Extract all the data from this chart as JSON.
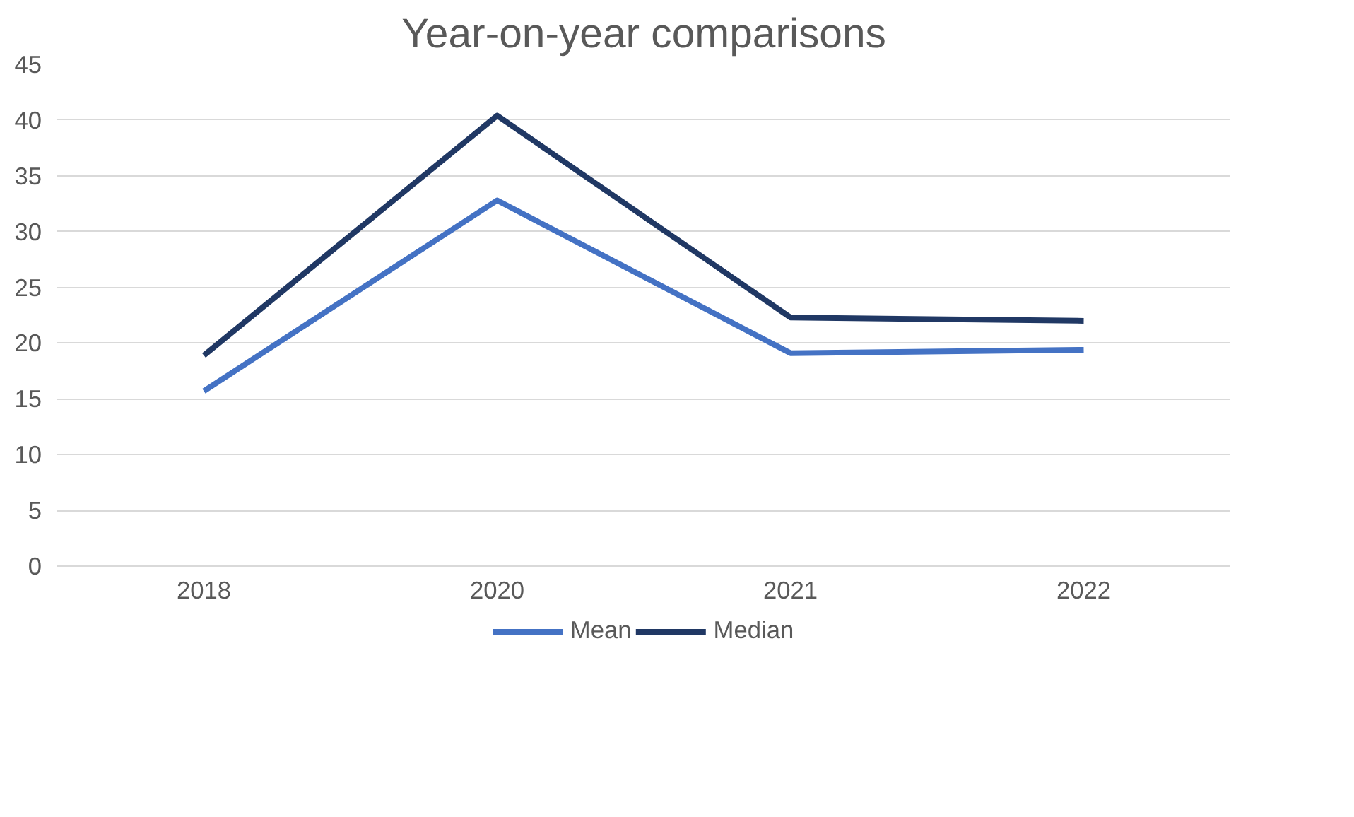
{
  "chart_data": {
    "type": "line",
    "title": "Year-on-year comparisons",
    "categories": [
      "2018",
      "2020",
      "2021",
      "2022"
    ],
    "series": [
      {
        "name": "Mean",
        "color": "#4472c4",
        "values": [
          15.7,
          32.8,
          19.1,
          19.4
        ]
      },
      {
        "name": "Median",
        "color": "#203864",
        "values": [
          18.9,
          40.4,
          22.3,
          22.0
        ]
      }
    ],
    "ylim": [
      0,
      45
    ],
    "yticks": [
      0,
      5,
      10,
      15,
      20,
      25,
      30,
      35,
      40,
      45
    ],
    "grid": "y",
    "legend": "bottom",
    "marker": "none",
    "line_style": "solid"
  }
}
